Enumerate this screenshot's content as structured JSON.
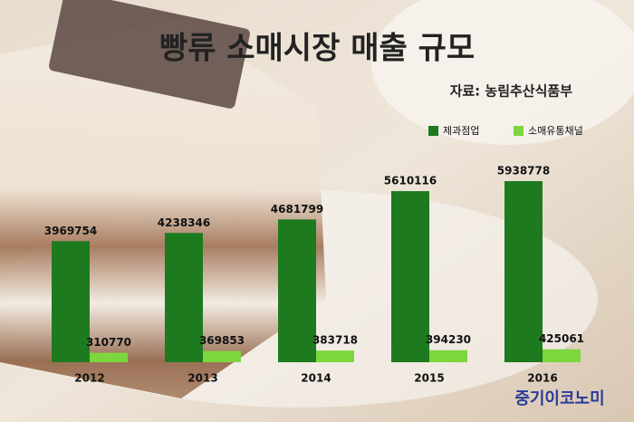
{
  "chart_data": {
    "type": "bar",
    "title": "빵류 소매시장 매출 규모",
    "subtitle": "자료: 농림추산식품부",
    "categories": [
      "2012",
      "2013",
      "2014",
      "2015",
      "2016"
    ],
    "series": [
      {
        "name": "제과점업",
        "color": "#1e7a1e",
        "values": [
          3969754,
          4238346,
          4681799,
          5610116,
          5938778
        ]
      },
      {
        "name": "소매유통채널",
        "color": "#7ed63e",
        "values": [
          310770,
          369853,
          383718,
          394230,
          425061
        ]
      }
    ],
    "logo": "중기이코노미"
  }
}
